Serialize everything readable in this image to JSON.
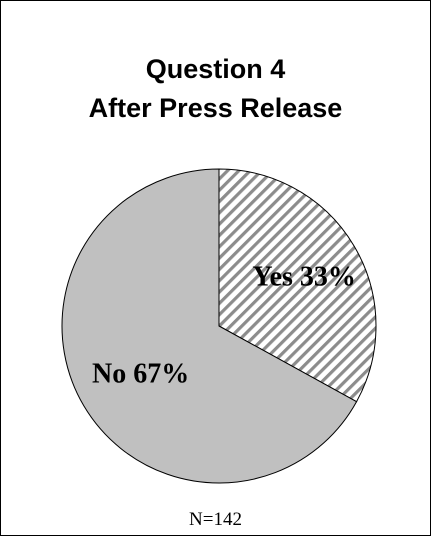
{
  "chart_data": {
    "type": "pie",
    "title": [
      "Question 4",
      "After Press Release"
    ],
    "slices": [
      {
        "label": "Yes 33%",
        "category": "Yes",
        "value": 33,
        "color": "#ffffff",
        "pattern": "diagonal-hatch"
      },
      {
        "label": "No 67%",
        "category": "No",
        "value": 67,
        "color": "#c0c0c0",
        "pattern": "solid"
      }
    ],
    "start_angle_deg": 0,
    "direction": "clockwise",
    "legend": "none",
    "footnote": "N=142"
  }
}
